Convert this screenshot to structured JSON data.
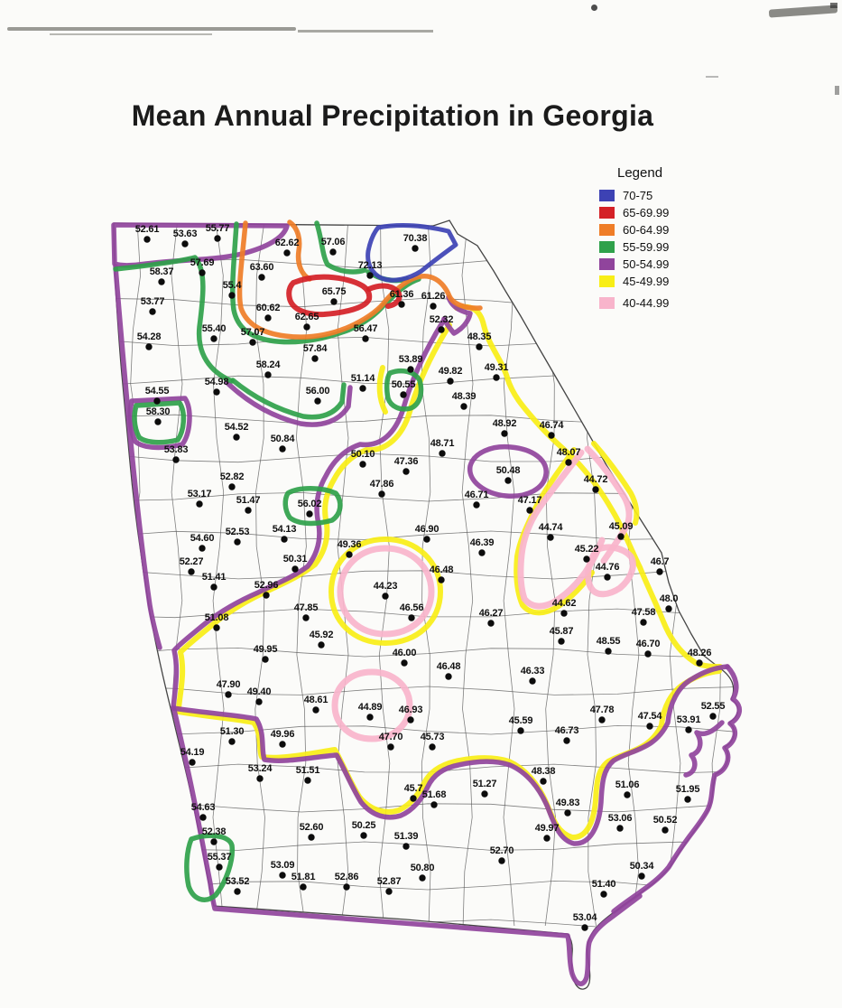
{
  "title": "Mean Annual Precipitation in Georgia",
  "legend": {
    "title": "Legend",
    "items": [
      {
        "key": "blue",
        "label": "70-75",
        "color": "#3d42b4"
      },
      {
        "key": "red",
        "label": "65-69.99",
        "color": "#d42026"
      },
      {
        "key": "orange",
        "label": "60-64.99",
        "color": "#ef7d27"
      },
      {
        "key": "green",
        "label": "55-59.99",
        "color": "#2fa14a"
      },
      {
        "key": "purple",
        "label": "50-54.99",
        "color": "#90449c"
      },
      {
        "key": "yellow",
        "label": "45-49.99",
        "color": "#f8ee16"
      },
      {
        "key": "pink",
        "label": "40-44.99",
        "color": "#f8b4cb",
        "gap_before": true
      }
    ]
  },
  "map": {
    "stations": [
      [
        "52.61",
        163,
        253
      ],
      [
        "53.63",
        205,
        258
      ],
      [
        "55.77",
        241,
        252
      ],
      [
        "62.62",
        318,
        268
      ],
      [
        "57.06",
        369,
        267
      ],
      [
        "70.38",
        460,
        263
      ],
      [
        "58.37",
        179,
        300
      ],
      [
        "57.69",
        224,
        290
      ],
      [
        "63.60",
        290,
        295
      ],
      [
        "72.13",
        410,
        293
      ],
      [
        "65.75",
        370,
        322
      ],
      [
        "61.36",
        445,
        325
      ],
      [
        "61.26",
        480,
        327
      ],
      [
        "53.77",
        169,
        333
      ],
      [
        "55.4",
        257,
        315
      ],
      [
        "60.62",
        297,
        340
      ],
      [
        "62.65",
        340,
        350
      ],
      [
        "52.32",
        489,
        353
      ],
      [
        "54.28",
        165,
        372
      ],
      [
        "55.40",
        237,
        363
      ],
      [
        "57.07",
        280,
        367
      ],
      [
        "56.47",
        405,
        363
      ],
      [
        "48.35",
        531,
        372
      ],
      [
        "53.89",
        455,
        397
      ],
      [
        "57.84",
        349,
        385
      ],
      [
        "58.24",
        297,
        403
      ],
      [
        "49.82",
        499,
        410
      ],
      [
        "49.31",
        550,
        406
      ],
      [
        "54.55",
        174,
        432
      ],
      [
        "54.98",
        240,
        422
      ],
      [
        "56.00",
        352,
        432
      ],
      [
        "51.14",
        402,
        418
      ],
      [
        "50.55",
        447,
        425
      ],
      [
        "48.39",
        514,
        438
      ],
      [
        "58.30",
        175,
        455
      ],
      [
        "54.52",
        262,
        472
      ],
      [
        "48.92",
        559,
        468
      ],
      [
        "46.74",
        611,
        470
      ],
      [
        "53.83",
        195,
        497
      ],
      [
        "50.84",
        313,
        485
      ],
      [
        "50.10",
        402,
        502
      ],
      [
        "48.71",
        490,
        490
      ],
      [
        "48.07",
        630,
        500
      ],
      [
        "47.36",
        450,
        510
      ],
      [
        "52.82",
        257,
        527
      ],
      [
        "50.48",
        563,
        520
      ],
      [
        "44.72",
        660,
        530
      ],
      [
        "53.17",
        221,
        546
      ],
      [
        "51.47",
        275,
        553
      ],
      [
        "56.02",
        343,
        557
      ],
      [
        "47.86",
        423,
        535
      ],
      [
        "46.71",
        528,
        547
      ],
      [
        "47.17",
        587,
        553
      ],
      [
        "44.74",
        610,
        583
      ],
      [
        "45.09",
        688,
        582
      ],
      [
        "54.60",
        224,
        595
      ],
      [
        "52.53",
        263,
        588
      ],
      [
        "54.13",
        315,
        585
      ],
      [
        "46.90",
        473,
        585
      ],
      [
        "46.39",
        534,
        600
      ],
      [
        "45.22",
        650,
        607
      ],
      [
        "44.76",
        673,
        627
      ],
      [
        "46.7",
        731,
        621
      ],
      [
        "52.27",
        212,
        621
      ],
      [
        "50.31",
        327,
        618
      ],
      [
        "49.36",
        387,
        602
      ],
      [
        "46.48",
        489,
        630
      ],
      [
        "51.41",
        237,
        638
      ],
      [
        "52.96",
        295,
        647
      ],
      [
        "44.23",
        427,
        648
      ],
      [
        "46.56",
        456,
        672
      ],
      [
        "46.27",
        544,
        678
      ],
      [
        "44.62",
        625,
        667
      ],
      [
        "45.87",
        622,
        698
      ],
      [
        "47.58",
        713,
        677
      ],
      [
        "48.0",
        741,
        662
      ],
      [
        "51.08",
        240,
        683
      ],
      [
        "47.85",
        339,
        672
      ],
      [
        "48.55",
        674,
        709
      ],
      [
        "46.70",
        718,
        712
      ],
      [
        "48.26",
        775,
        722
      ],
      [
        "45.92",
        356,
        702
      ],
      [
        "49.95",
        294,
        718
      ],
      [
        "46.00",
        448,
        722
      ],
      [
        "46.48",
        497,
        737
      ],
      [
        "46.33",
        590,
        742
      ],
      [
        "47.90",
        253,
        757
      ],
      [
        "49.40",
        287,
        765
      ],
      [
        "48.61",
        350,
        774
      ],
      [
        "44.89",
        410,
        782
      ],
      [
        "46.93",
        455,
        785
      ],
      [
        "45.59",
        577,
        797
      ],
      [
        "47.78",
        667,
        785
      ],
      [
        "47.54",
        720,
        792
      ],
      [
        "53.91",
        763,
        796
      ],
      [
        "52.55",
        790,
        781
      ],
      [
        "51.30",
        257,
        809
      ],
      [
        "49.96",
        313,
        812
      ],
      [
        "54.19",
        213,
        832
      ],
      [
        "45.73",
        479,
        815
      ],
      [
        "47.70",
        433,
        815
      ],
      [
        "53.24",
        288,
        850
      ],
      [
        "51.51",
        341,
        852
      ],
      [
        "48.38",
        602,
        853
      ],
      [
        "46.73",
        628,
        808
      ],
      [
        "45.7",
        458,
        872
      ],
      [
        "51.68",
        481,
        879
      ],
      [
        "51.27",
        537,
        867
      ],
      [
        "51.06",
        695,
        868
      ],
      [
        "51.95",
        762,
        873
      ],
      [
        "54.63",
        225,
        893
      ],
      [
        "49.83",
        629,
        888
      ],
      [
        "53.06",
        687,
        905
      ],
      [
        "50.52",
        737,
        907
      ],
      [
        "52.38",
        237,
        920
      ],
      [
        "49.97",
        606,
        916
      ],
      [
        "52.60",
        345,
        915
      ],
      [
        "50.25",
        403,
        913
      ],
      [
        "51.39",
        450,
        925
      ],
      [
        "55.37",
        243,
        948
      ],
      [
        "53.09",
        313,
        957
      ],
      [
        "52.70",
        556,
        941
      ],
      [
        "50.34",
        711,
        958
      ],
      [
        "53.52",
        263,
        975
      ],
      [
        "51.81",
        336,
        970
      ],
      [
        "52.86",
        384,
        970
      ],
      [
        "52.87",
        431,
        975
      ],
      [
        "50.80",
        468,
        960
      ],
      [
        "51.40",
        669,
        978
      ],
      [
        "53.04",
        648,
        1015
      ]
    ]
  }
}
